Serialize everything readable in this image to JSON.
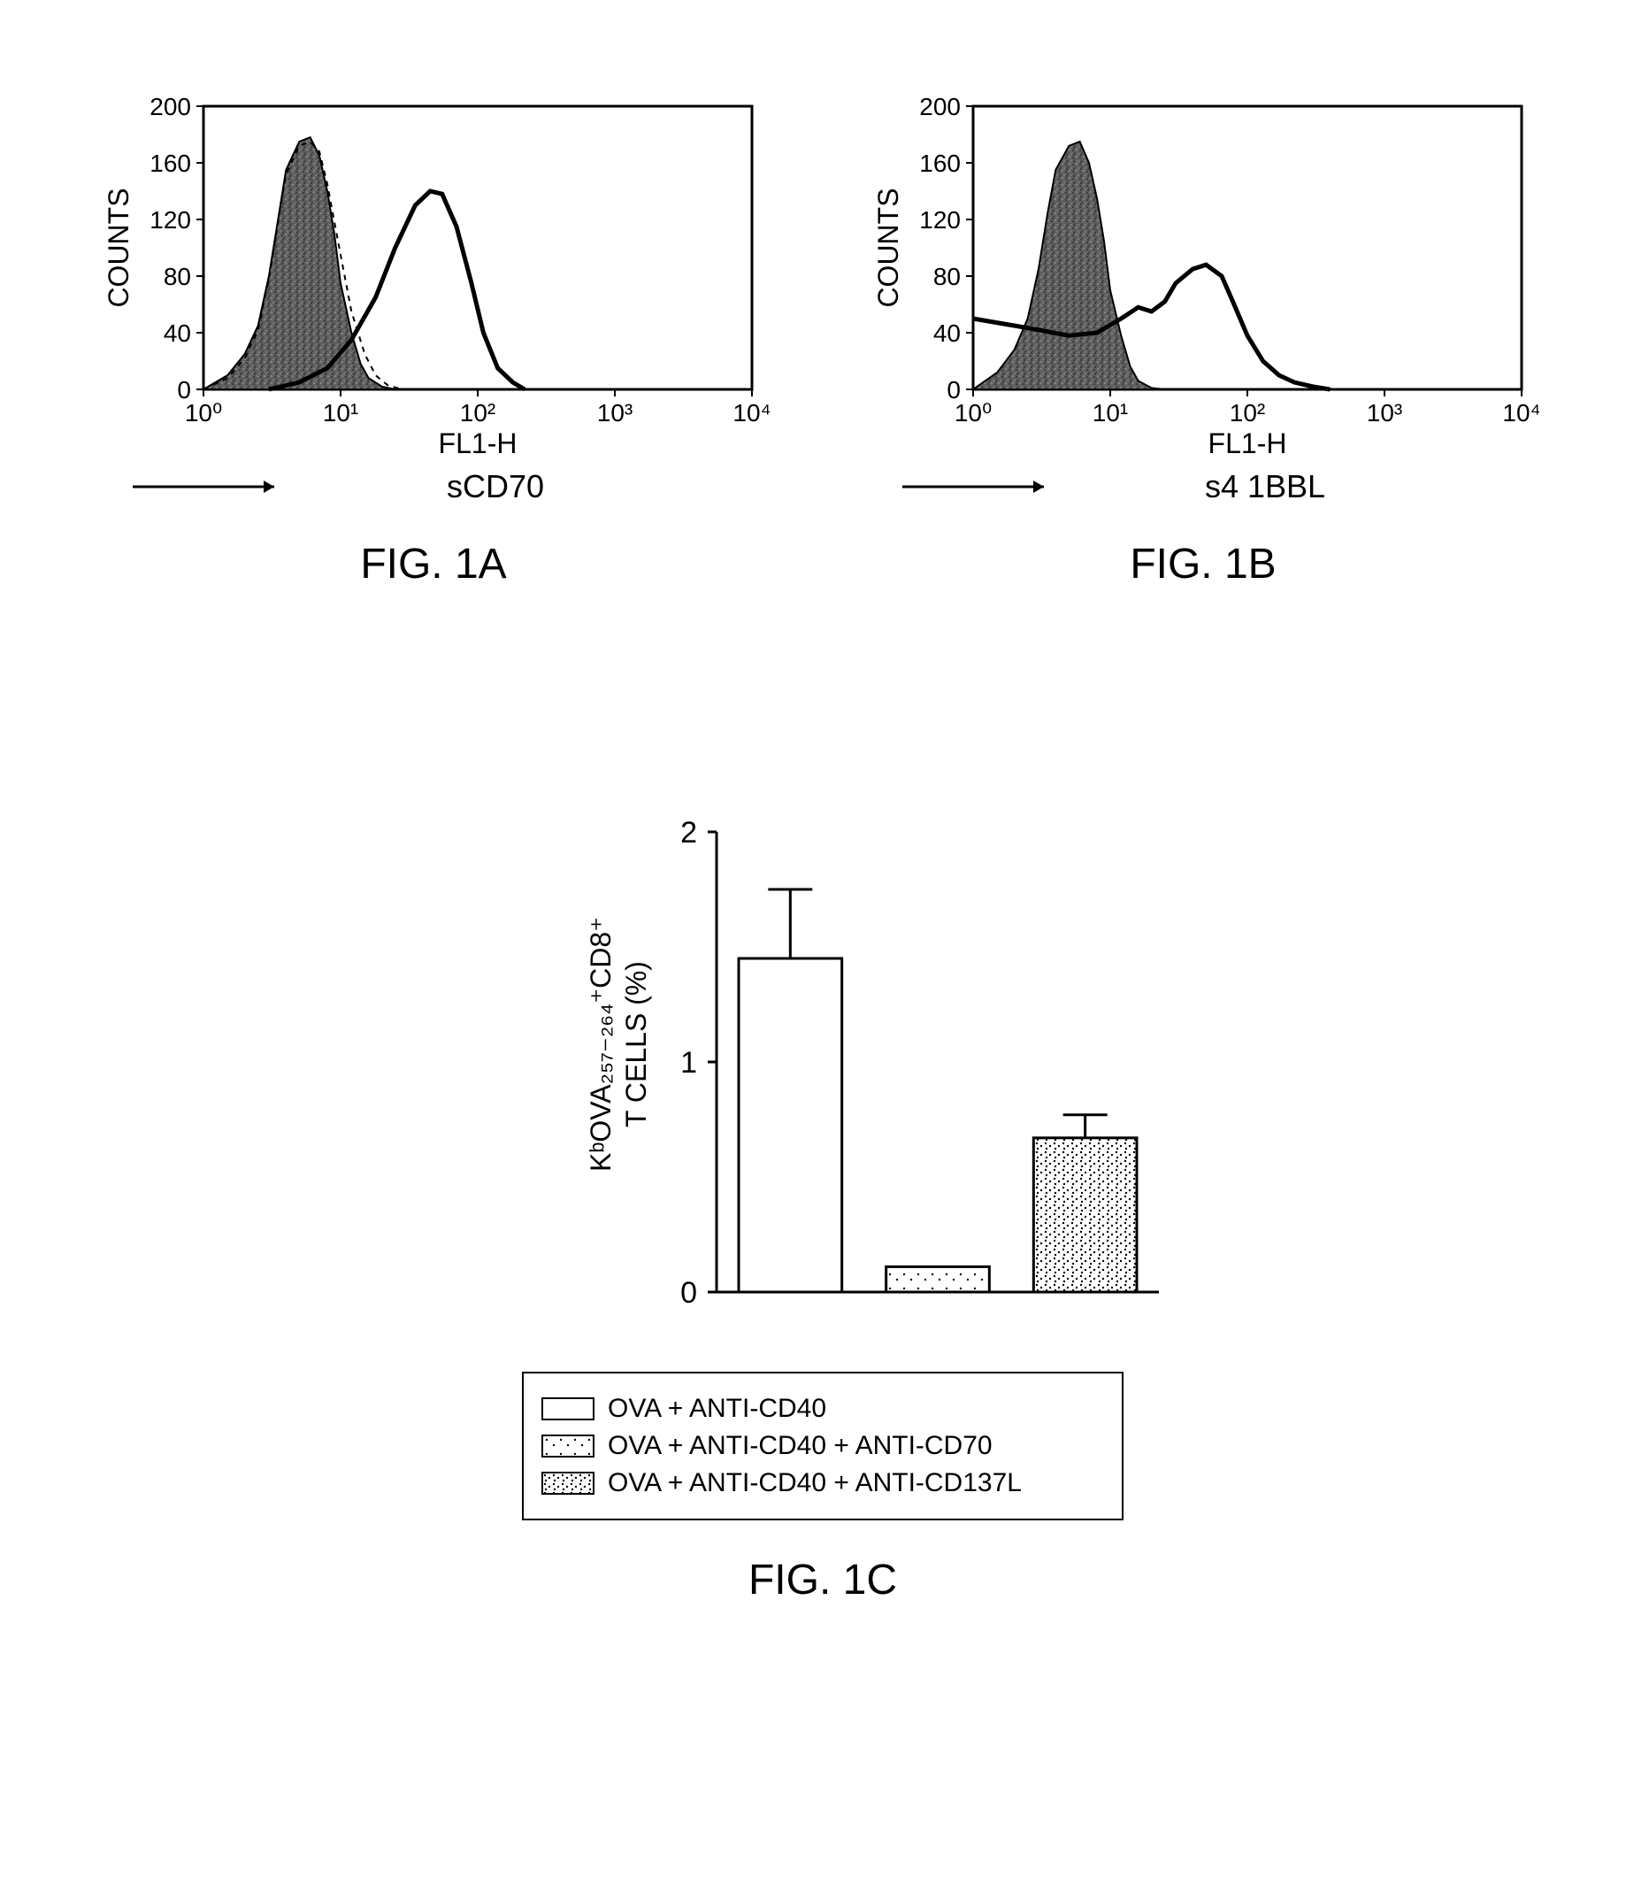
{
  "fig1a": {
    "type": "histogram",
    "caption": "FIG. 1A",
    "ylabel": "COUNTS",
    "xlabel": "FL1-H",
    "sublabel": "sCD70",
    "xscale": "log",
    "xlim": [
      1,
      10000
    ],
    "xticks": [
      1,
      10,
      100,
      1000,
      10000
    ],
    "xtick_labels": [
      "10⁰",
      "10¹",
      "10²",
      "10³",
      "10⁴"
    ],
    "ylim": [
      0,
      200
    ],
    "yticks": [
      0,
      40,
      80,
      120,
      160,
      200
    ],
    "background_color": "#ffffff",
    "axis_color": "#000000",
    "label_fontsize": 32,
    "tick_fontsize": 28,
    "filled_curve": {
      "points": [
        [
          1,
          0
        ],
        [
          1.5,
          10
        ],
        [
          2,
          25
        ],
        [
          2.5,
          45
        ],
        [
          3,
          80
        ],
        [
          3.5,
          120
        ],
        [
          4,
          155
        ],
        [
          5,
          175
        ],
        [
          6,
          178
        ],
        [
          7,
          165
        ],
        [
          8,
          140
        ],
        [
          9,
          110
        ],
        [
          10,
          75
        ],
        [
          12,
          40
        ],
        [
          14,
          18
        ],
        [
          16,
          8
        ],
        [
          20,
          2
        ],
        [
          25,
          0
        ]
      ],
      "fill_color": "#808080",
      "stroke_color": "#000000",
      "stroke_width": 2
    },
    "dashed_curve": {
      "points": [
        [
          1,
          0
        ],
        [
          1.5,
          8
        ],
        [
          2,
          22
        ],
        [
          2.5,
          42
        ],
        [
          3,
          78
        ],
        [
          3.5,
          118
        ],
        [
          4,
          152
        ],
        [
          5,
          172
        ],
        [
          6,
          175
        ],
        [
          7,
          168
        ],
        [
          8,
          145
        ],
        [
          10,
          95
        ],
        [
          12,
          55
        ],
        [
          15,
          25
        ],
        [
          18,
          10
        ],
        [
          22,
          3
        ],
        [
          28,
          0
        ]
      ],
      "stroke_color": "#000000",
      "stroke_width": 2,
      "dash": "6,6"
    },
    "solid_curve": {
      "points": [
        [
          3,
          0
        ],
        [
          5,
          5
        ],
        [
          8,
          15
        ],
        [
          12,
          35
        ],
        [
          18,
          65
        ],
        [
          25,
          100
        ],
        [
          35,
          130
        ],
        [
          45,
          140
        ],
        [
          55,
          138
        ],
        [
          70,
          115
        ],
        [
          90,
          75
        ],
        [
          110,
          40
        ],
        [
          140,
          15
        ],
        [
          180,
          5
        ],
        [
          220,
          0
        ]
      ],
      "stroke_color": "#000000",
      "stroke_width": 5
    }
  },
  "fig1b": {
    "type": "histogram",
    "caption": "FIG. 1B",
    "ylabel": "COUNTS",
    "xlabel": "FL1-H",
    "sublabel": "s4 1BBL",
    "xscale": "log",
    "xlim": [
      1,
      10000
    ],
    "xticks": [
      1,
      10,
      100,
      1000,
      10000
    ],
    "xtick_labels": [
      "10⁰",
      "10¹",
      "10²",
      "10³",
      "10⁴"
    ],
    "ylim": [
      0,
      200
    ],
    "yticks": [
      0,
      40,
      80,
      120,
      160,
      200
    ],
    "background_color": "#ffffff",
    "axis_color": "#000000",
    "label_fontsize": 32,
    "tick_fontsize": 28,
    "filled_curve": {
      "points": [
        [
          1,
          0
        ],
        [
          1.5,
          12
        ],
        [
          2,
          28
        ],
        [
          2.5,
          50
        ],
        [
          3,
          85
        ],
        [
          3.5,
          125
        ],
        [
          4,
          155
        ],
        [
          5,
          172
        ],
        [
          6,
          175
        ],
        [
          7,
          160
        ],
        [
          8,
          135
        ],
        [
          9,
          105
        ],
        [
          10,
          70
        ],
        [
          12,
          38
        ],
        [
          14,
          16
        ],
        [
          16,
          6
        ],
        [
          20,
          1
        ],
        [
          25,
          0
        ]
      ],
      "fill_color": "#808080",
      "stroke_color": "#000000",
      "stroke_width": 2
    },
    "solid_curve": {
      "points": [
        [
          1,
          50
        ],
        [
          2,
          45
        ],
        [
          3,
          42
        ],
        [
          5,
          38
        ],
        [
          8,
          40
        ],
        [
          12,
          50
        ],
        [
          16,
          58
        ],
        [
          20,
          55
        ],
        [
          25,
          62
        ],
        [
          30,
          75
        ],
        [
          40,
          85
        ],
        [
          50,
          88
        ],
        [
          65,
          80
        ],
        [
          80,
          60
        ],
        [
          100,
          38
        ],
        [
          130,
          20
        ],
        [
          170,
          10
        ],
        [
          220,
          5
        ],
        [
          300,
          2
        ],
        [
          400,
          0
        ]
      ],
      "stroke_color": "#000000",
      "stroke_width": 5
    }
  },
  "fig1c": {
    "type": "bar",
    "caption": "FIG. 1C",
    "ylabel_line1": "KᵇOVA₂₅₇₋₂₆₄⁺CD8⁺",
    "ylabel_line2": "T CELLS (%)",
    "ylim": [
      0,
      2
    ],
    "yticks": [
      0,
      1,
      2
    ],
    "background_color": "#ffffff",
    "axis_color": "#000000",
    "bar_width": 0.7,
    "bars": [
      {
        "value": 1.45,
        "error": 0.3,
        "fill": "none",
        "label": "OVA + ANTI-CD40"
      },
      {
        "value": 0.11,
        "error": 0,
        "fill": "sparse-dots",
        "label": "OVA + ANTI-CD40 + ANTI-CD70"
      },
      {
        "value": 0.67,
        "error": 0.1,
        "fill": "dense-dots",
        "label": "OVA + ANTI-CD40 + ANTI-CD137L"
      }
    ],
    "legend_items": [
      {
        "fill": "none",
        "text": "OVA + ANTI-CD40"
      },
      {
        "fill": "sparse-dots",
        "text": "OVA + ANTI-CD40 + ANTI-CD70"
      },
      {
        "fill": "dense-dots",
        "text": "OVA + ANTI-CD40 + ANTI-CD137L"
      }
    ]
  }
}
